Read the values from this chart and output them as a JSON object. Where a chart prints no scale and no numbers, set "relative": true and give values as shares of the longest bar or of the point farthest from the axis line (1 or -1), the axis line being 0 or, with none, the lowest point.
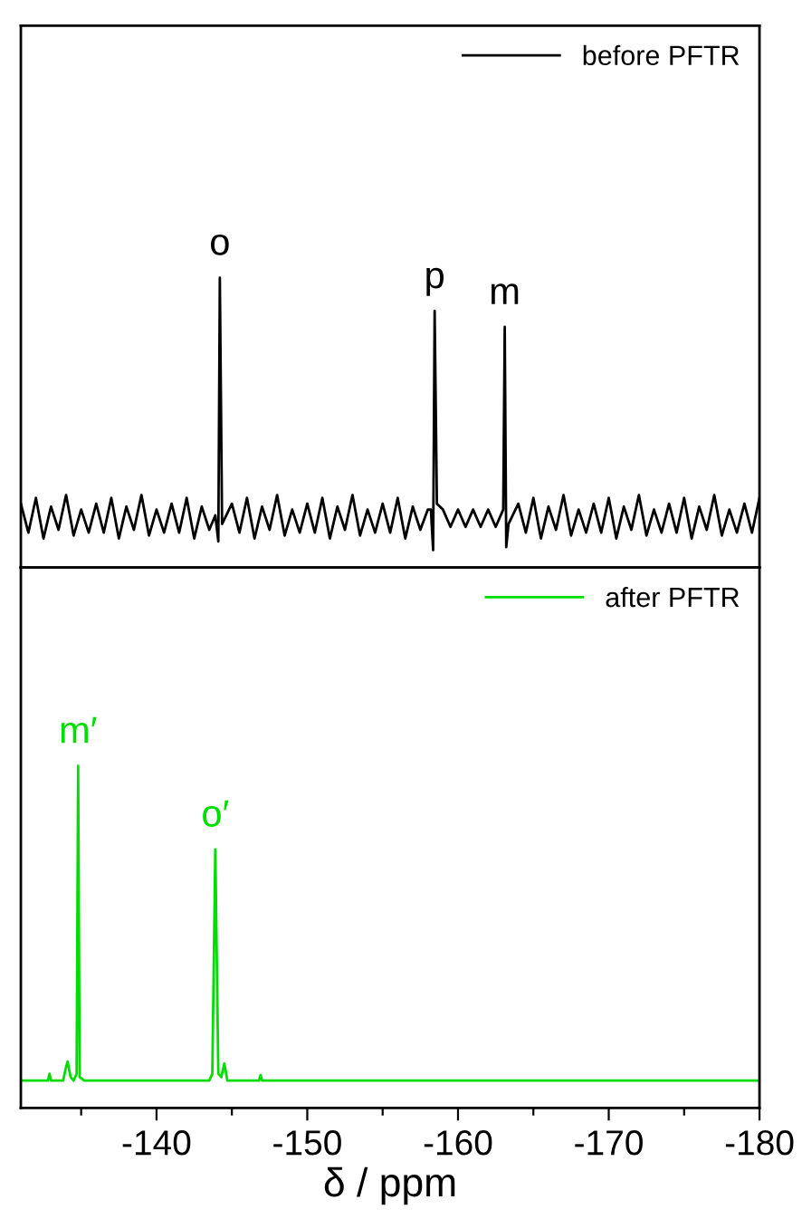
{
  "chart_data": [
    {
      "type": "line",
      "relative": true,
      "xlim": [
        -131,
        -180
      ],
      "tick_labels": false,
      "legend": "top right",
      "series": [
        {
          "name": "before PFTR",
          "color": "#000000",
          "x": [
            -131,
            -131.5,
            -132,
            -132.5,
            -133,
            -133.5,
            -134,
            -134.5,
            -135,
            -135.5,
            -136,
            -136.5,
            -137,
            -137.5,
            -138,
            -138.5,
            -139,
            -139.5,
            -140,
            -140.5,
            -141,
            -141.5,
            -142,
            -142.5,
            -143,
            -143.5,
            -143.9,
            -144.1,
            -144.2,
            -144.35,
            -145,
            -145.5,
            -146,
            -146.5,
            -147,
            -147.5,
            -148,
            -148.5,
            -149,
            -149.5,
            -150,
            -150.5,
            -151,
            -151.5,
            -152,
            -152.5,
            -153,
            -153.5,
            -154,
            -154.5,
            -155,
            -155.5,
            -156,
            -156.5,
            -157,
            -157.5,
            -158,
            -158.2,
            -158.35,
            -158.45,
            -158.6,
            -159,
            -159.5,
            -160,
            -160.5,
            -161,
            -161.5,
            -162,
            -162.5,
            -163,
            -163.1,
            -163.2,
            -163.35,
            -164,
            -164.5,
            -165,
            -165.5,
            -166,
            -166.5,
            -167,
            -167.5,
            -168,
            -168.5,
            -169,
            -169.5,
            -170,
            -170.5,
            -171,
            -171.5,
            -172,
            -172.5,
            -173,
            -173.5,
            -174,
            -174.5,
            -175,
            -175.5,
            -176,
            -176.5,
            -177,
            -177.5,
            -178,
            -178.5,
            -179,
            -179.5,
            -180
          ],
          "values": [
            0.22,
            0.12,
            0.24,
            0.1,
            0.21,
            0.13,
            0.25,
            0.11,
            0.2,
            0.12,
            0.22,
            0.12,
            0.24,
            0.1,
            0.21,
            0.13,
            0.25,
            0.11,
            0.2,
            0.12,
            0.22,
            0.12,
            0.24,
            0.1,
            0.21,
            0.13,
            0.18,
            0.09,
            1,
            0.15,
            0.22,
            0.12,
            0.24,
            0.1,
            0.21,
            0.13,
            0.25,
            0.11,
            0.2,
            0.12,
            0.22,
            0.12,
            0.24,
            0.1,
            0.21,
            0.13,
            0.25,
            0.11,
            0.2,
            0.12,
            0.22,
            0.12,
            0.24,
            0.1,
            0.21,
            0.13,
            0.2,
            0.2,
            0.06,
            0.885,
            0.22,
            0.2,
            0.14,
            0.2,
            0.14,
            0.2,
            0.14,
            0.2,
            0.14,
            0.2,
            0.83,
            0.07,
            0.15,
            0.22,
            0.12,
            0.24,
            0.1,
            0.21,
            0.13,
            0.25,
            0.11,
            0.2,
            0.12,
            0.22,
            0.12,
            0.24,
            0.1,
            0.21,
            0.13,
            0.25,
            0.11,
            0.2,
            0.12,
            0.22,
            0.12,
            0.24,
            0.1,
            0.21,
            0.13,
            0.25,
            0.11,
            0.2,
            0.12,
            0.22,
            0.12,
            0.24
          ]
        }
      ],
      "annotations": [
        {
          "text": "o",
          "x": -144.2,
          "y": 1
        },
        {
          "text": "p",
          "x": -158.45,
          "y": 0.885
        },
        {
          "text": "m",
          "x": -163.1,
          "y": 0.83
        }
      ]
    },
    {
      "type": "line",
      "relative": true,
      "xlim": [
        -131,
        -180
      ],
      "tick_labels": "x",
      "legend": "top right",
      "xlabel": "δ / ppm",
      "xticks": [
        {
          "value": -135,
          "label": null
        },
        -140,
        {
          "value": -145,
          "label": null
        },
        -150,
        {
          "value": -155,
          "label": null
        },
        -160,
        {
          "value": -165,
          "label": null
        },
        -170,
        {
          "value": -175,
          "label": null
        },
        -180
      ],
      "series": [
        {
          "name": "after PFTR",
          "color": "#00dd00",
          "x": [
            -131,
            -132.5,
            -132.8,
            -132.9,
            -133.0,
            -133.8,
            -134.0,
            -134.1,
            -134.3,
            -134.5,
            -134.7,
            -134.8,
            -134.9,
            -135.2,
            -138,
            -141,
            -143.5,
            -143.7,
            -143.9,
            -144.1,
            -144.3,
            -144.5,
            -144.7,
            -145.5,
            -146.8,
            -146.9,
            -147.0,
            -150,
            -155,
            -160,
            -165,
            -170,
            -175,
            -180
          ],
          "values": [
            0.08,
            0.08,
            0.08,
            0.1,
            0.08,
            0.08,
            0.12,
            0.136,
            0.09,
            0.08,
            0.1,
            1,
            0.09,
            0.08,
            0.08,
            0.08,
            0.08,
            0.1,
            0.756,
            0.1,
            0.09,
            0.13,
            0.08,
            0.08,
            0.08,
            0.096,
            0.08,
            0.08,
            0.08,
            0.08,
            0.08,
            0.08,
            0.08,
            0.08
          ]
        }
      ],
      "annotations": [
        {
          "text": "m′",
          "x": -134.8,
          "y": 1
        },
        {
          "text": "o′",
          "x": -143.9,
          "y": 0.756
        }
      ]
    }
  ]
}
